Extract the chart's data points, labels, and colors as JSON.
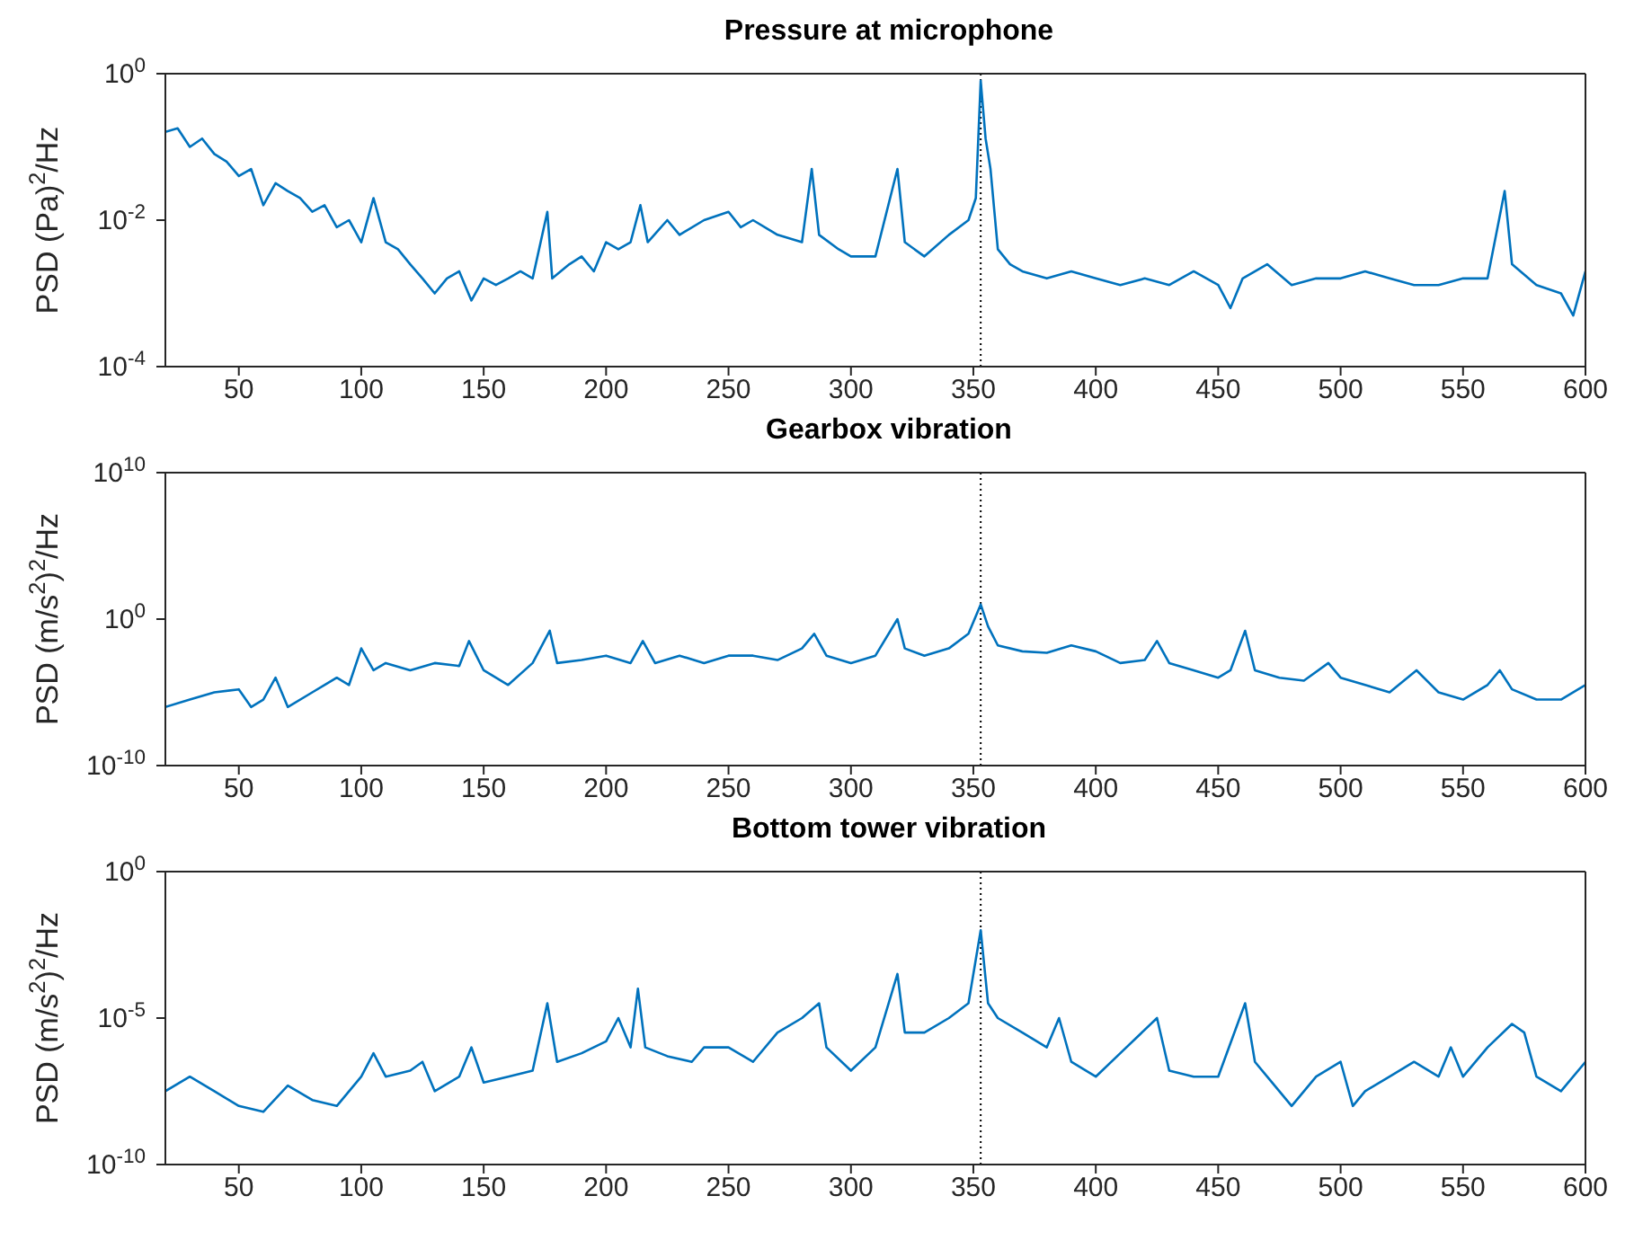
{
  "chart_data": [
    {
      "type": "line",
      "title": "Pressure at microphone",
      "ylabel": "PSD (Pa)$^{2}$/Hz",
      "color": "#0072bd",
      "log": "y",
      "xlim": [
        20,
        600
      ],
      "xticks": [
        50,
        100,
        150,
        200,
        250,
        300,
        350,
        400,
        450,
        500,
        550,
        600
      ],
      "ylim": [
        0.0001,
        1
      ],
      "yticks": [
        {
          "value": 0.0001,
          "label": "10$^{-4}$"
        },
        {
          "value": 0.01,
          "label": "10$^{-2}$"
        },
        {
          "value": 1,
          "label": "10$^{0}$"
        }
      ],
      "ref_lines": [
        {
          "axis": "x",
          "value": 353,
          "color": "#000000",
          "line_style": "dotted"
        }
      ],
      "x": [
        20,
        25,
        30,
        35,
        40,
        45,
        50,
        55,
        60,
        65,
        70,
        75,
        80,
        85,
        90,
        95,
        100,
        105,
        110,
        115,
        120,
        125,
        130,
        135,
        140,
        145,
        150,
        155,
        160,
        165,
        170,
        176,
        178,
        185,
        190,
        195,
        200,
        205,
        210,
        214,
        217,
        225,
        230,
        240,
        250,
        255,
        260,
        270,
        280,
        284,
        287,
        295,
        300,
        310,
        319,
        322,
        330,
        340,
        348,
        351,
        353,
        355,
        357,
        360,
        365,
        370,
        380,
        390,
        400,
        410,
        420,
        430,
        440,
        450,
        455,
        460,
        470,
        480,
        490,
        500,
        510,
        520,
        530,
        540,
        550,
        560,
        567,
        570,
        580,
        590,
        595,
        600
      ],
      "values": [
        0.16,
        0.18,
        0.1,
        0.13,
        0.08,
        0.063,
        0.04,
        0.05,
        0.016,
        0.032,
        0.025,
        0.02,
        0.013,
        0.016,
        0.008,
        0.01,
        0.005,
        0.02,
        0.005,
        0.004,
        0.0025,
        0.0016,
        0.001,
        0.0016,
        0.002,
        0.0008,
        0.0016,
        0.0013,
        0.0016,
        0.002,
        0.0016,
        0.013,
        0.0016,
        0.0025,
        0.0032,
        0.002,
        0.005,
        0.004,
        0.005,
        0.016,
        0.005,
        0.01,
        0.0063,
        0.01,
        0.013,
        0.008,
        0.01,
        0.0063,
        0.005,
        0.05,
        0.0063,
        0.004,
        0.0032,
        0.0032,
        0.05,
        0.005,
        0.0032,
        0.0063,
        0.01,
        0.02,
        0.8,
        0.13,
        0.05,
        0.004,
        0.0025,
        0.002,
        0.0016,
        0.002,
        0.0016,
        0.0013,
        0.0016,
        0.0013,
        0.002,
        0.0013,
        0.00063,
        0.0016,
        0.0025,
        0.0013,
        0.0016,
        0.0016,
        0.002,
        0.0016,
        0.0013,
        0.0013,
        0.0016,
        0.0016,
        0.025,
        0.0025,
        0.0013,
        0.001,
        0.0005,
        0.002
      ]
    },
    {
      "type": "line",
      "title": "Gearbox vibration",
      "ylabel": "PSD (m/s$^{2}$)$^{2}$/Hz",
      "color": "#0072bd",
      "log": "y",
      "xlim": [
        20,
        600
      ],
      "xticks": [
        50,
        100,
        150,
        200,
        250,
        300,
        350,
        400,
        450,
        500,
        550,
        600
      ],
      "ylim": [
        1e-10,
        10000000000.0
      ],
      "yticks": [
        {
          "value": 1e-10,
          "label": "10$^{-10}$"
        },
        {
          "value": 1,
          "label": "10$^{0}$"
        },
        {
          "value": 10000000000.0,
          "label": "10$^{10}$"
        }
      ],
      "ref_lines": [
        {
          "axis": "x",
          "value": 353,
          "color": "#000000",
          "line_style": "dotted"
        }
      ],
      "x": [
        20,
        30,
        40,
        50,
        55,
        60,
        65,
        70,
        80,
        90,
        95,
        100,
        105,
        110,
        120,
        130,
        140,
        144,
        150,
        160,
        170,
        177,
        180,
        190,
        200,
        210,
        215,
        220,
        230,
        240,
        250,
        260,
        270,
        280,
        285,
        290,
        300,
        310,
        319,
        322,
        330,
        340,
        348,
        353,
        356,
        360,
        370,
        380,
        390,
        400,
        410,
        420,
        425,
        430,
        440,
        450,
        455,
        461,
        465,
        475,
        485,
        495,
        500,
        510,
        520,
        531,
        540,
        550,
        560,
        565,
        570,
        580,
        590,
        600
      ],
      "values": [
        1e-06,
        3.2e-06,
        1e-05,
        1.6e-05,
        1e-06,
        3.2e-06,
        0.0001,
        1e-06,
        1e-05,
        0.0001,
        3.2e-05,
        0.01,
        0.00032,
        0.001,
        0.00032,
        0.001,
        0.00063,
        0.032,
        0.00032,
        3.2e-05,
        0.001,
        0.16,
        0.001,
        0.0016,
        0.0032,
        0.001,
        0.032,
        0.001,
        0.0032,
        0.001,
        0.0032,
        0.0032,
        0.0016,
        0.01,
        0.1,
        0.0032,
        0.001,
        0.0032,
        1,
        0.01,
        0.0032,
        0.01,
        0.1,
        10,
        0.32,
        0.016,
        0.0063,
        0.005,
        0.016,
        0.0063,
        0.001,
        0.0016,
        0.032,
        0.001,
        0.00032,
        0.0001,
        0.00032,
        0.16,
        0.00032,
        0.0001,
        6.3e-05,
        0.001,
        0.0001,
        3.2e-05,
        1e-05,
        0.00032,
        1e-05,
        3.2e-06,
        3.2e-05,
        0.00032,
        1.6e-05,
        3.2e-06,
        3.2e-06,
        3.2e-05
      ]
    },
    {
      "type": "line",
      "title": "Bottom tower vibration",
      "ylabel": "PSD (m/s$^{2}$)$^{2}$/Hz",
      "color": "#0072bd",
      "log": "y",
      "xlim": [
        20,
        600
      ],
      "xticks": [
        50,
        100,
        150,
        200,
        250,
        300,
        350,
        400,
        450,
        500,
        550,
        600
      ],
      "ylim": [
        1e-10,
        1
      ],
      "yticks": [
        {
          "value": 1e-10,
          "label": "10$^{-10}$"
        },
        {
          "value": 1e-05,
          "label": "10$^{-5}$"
        },
        {
          "value": 1,
          "label": "10$^{0}$"
        }
      ],
      "ref_lines": [
        {
          "axis": "x",
          "value": 353,
          "color": "#000000",
          "line_style": "dotted"
        }
      ],
      "x": [
        20,
        30,
        40,
        50,
        60,
        70,
        80,
        90,
        100,
        105,
        110,
        120,
        125,
        130,
        140,
        145,
        150,
        160,
        170,
        176,
        180,
        190,
        200,
        205,
        210,
        213,
        216,
        225,
        235,
        240,
        250,
        260,
        270,
        280,
        287,
        290,
        300,
        310,
        319,
        322,
        330,
        340,
        348,
        353,
        356,
        360,
        370,
        380,
        385,
        390,
        400,
        410,
        425,
        430,
        440,
        450,
        461,
        465,
        470,
        480,
        490,
        500,
        505,
        510,
        520,
        530,
        540,
        545,
        550,
        560,
        570,
        575,
        580,
        590,
        600
      ],
      "values": [
        3.2e-08,
        1e-07,
        3.2e-08,
        1e-08,
        6.3e-09,
        5e-08,
        1.6e-08,
        1e-08,
        1e-07,
        6.3e-07,
        1e-07,
        1.6e-07,
        3.2e-07,
        3.2e-08,
        1e-07,
        1e-06,
        6.3e-08,
        1e-07,
        1.6e-07,
        3.2e-05,
        3.2e-07,
        6.3e-07,
        1.6e-06,
        1e-05,
        1e-06,
        0.0001,
        1e-06,
        5e-07,
        3.2e-07,
        1e-06,
        1e-06,
        3.2e-07,
        3.2e-06,
        1e-05,
        3.2e-05,
        1e-06,
        1.6e-07,
        1e-06,
        0.00032,
        3.2e-06,
        3.2e-06,
        1e-05,
        3.2e-05,
        0.01,
        3.2e-05,
        1e-05,
        3.2e-06,
        1e-06,
        1e-05,
        3.2e-07,
        1e-07,
        6.3e-07,
        1e-05,
        1.6e-07,
        1e-07,
        1e-07,
        3.2e-05,
        3.2e-07,
        1e-07,
        1e-08,
        1e-07,
        3.2e-07,
        1e-08,
        3.2e-08,
        1e-07,
        3.2e-07,
        1e-07,
        1e-06,
        1e-07,
        1e-06,
        6.3e-06,
        3.2e-06,
        1e-07,
        3.2e-08,
        3.2e-07
      ]
    }
  ]
}
